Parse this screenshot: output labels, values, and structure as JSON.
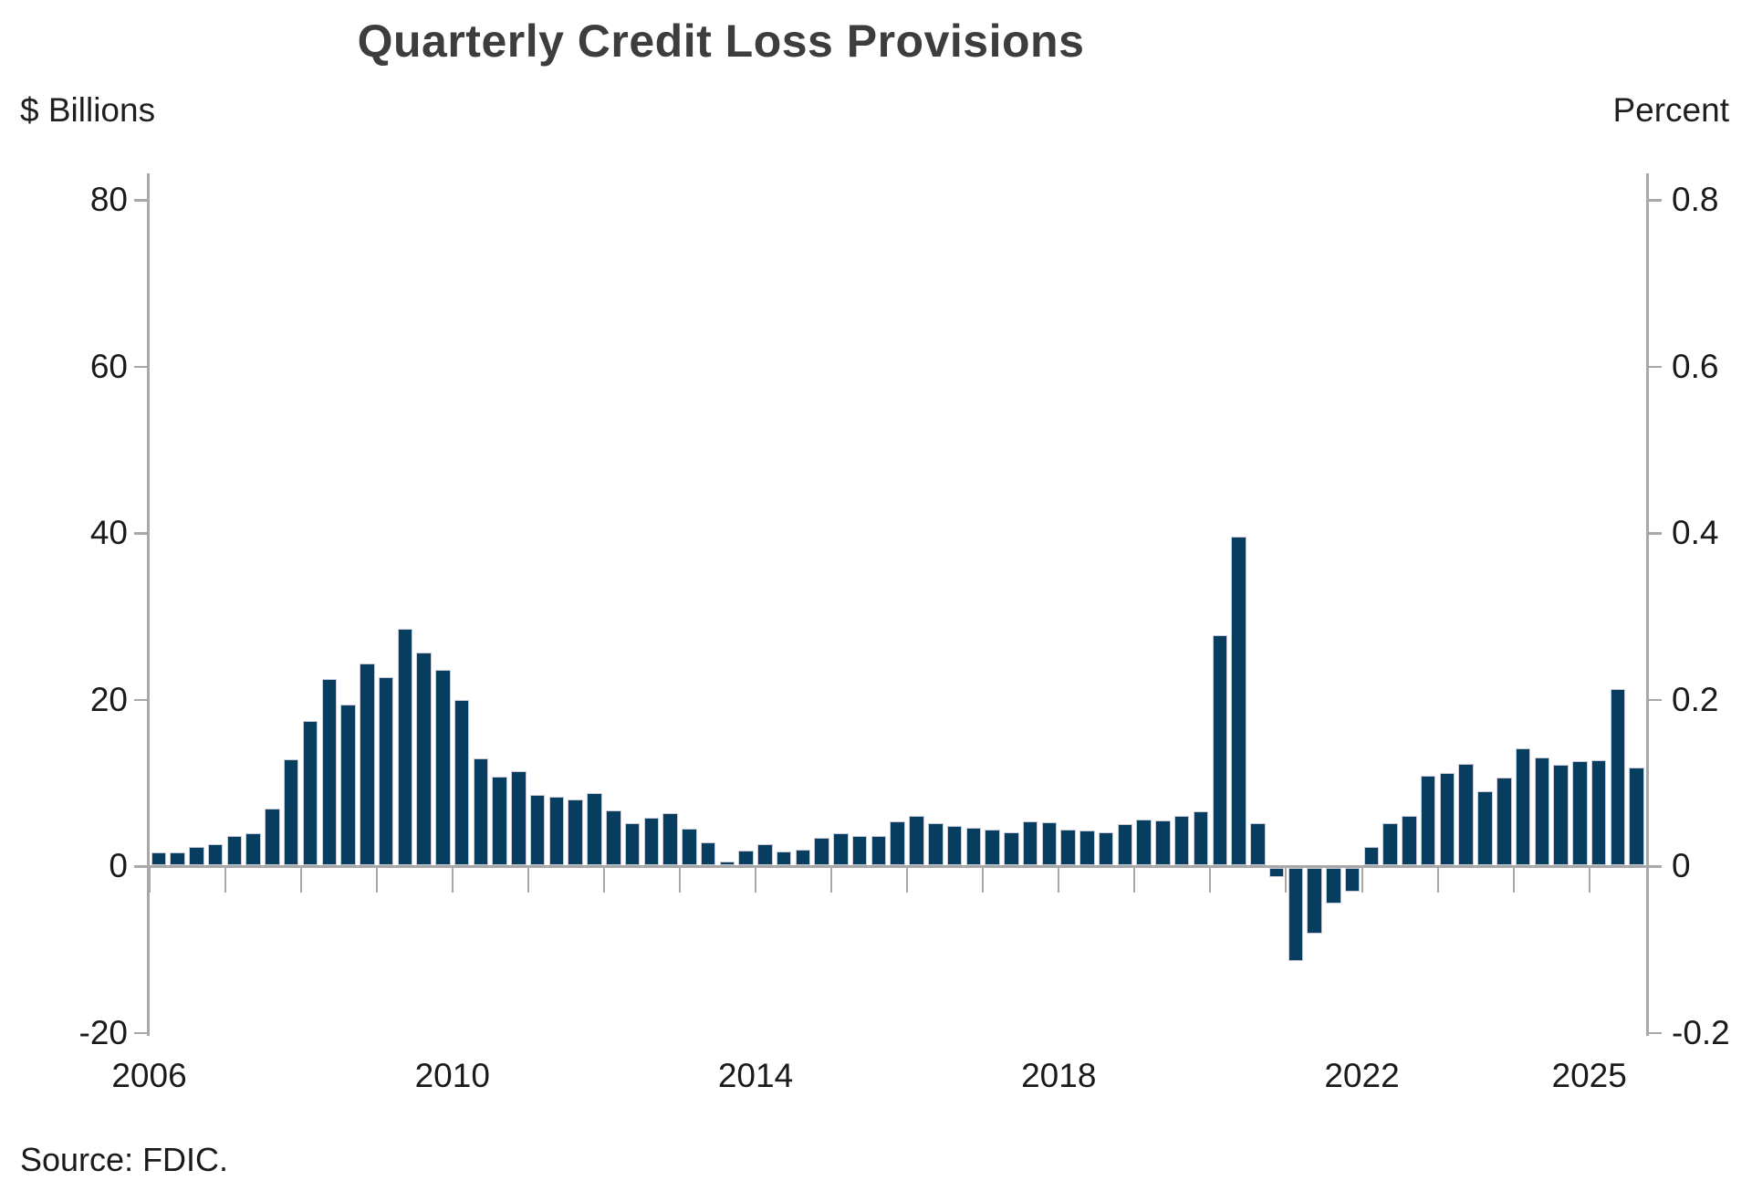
{
  "title": "Quarterly Credit Loss Provisions",
  "left_axis": {
    "title": "$ Billions",
    "tick_labels": [
      "80",
      "60",
      "40",
      "20",
      "0",
      "-20"
    ],
    "tick_values": [
      80,
      60,
      40,
      20,
      0,
      -20
    ]
  },
  "right_axis": {
    "title": "Percent",
    "tick_labels": [
      "0.8",
      "0.6",
      "0.4",
      "0.2",
      "0",
      "-0.2"
    ],
    "tick_values": [
      80,
      60,
      40,
      20,
      0,
      -20
    ]
  },
  "x_axis": {
    "labeled_years": [
      2006,
      2010,
      2014,
      2018,
      2022,
      2025
    ],
    "minor_tick_years": [
      2006,
      2007,
      2008,
      2009,
      2010,
      2011,
      2012,
      2013,
      2014,
      2015,
      2016,
      2017,
      2018,
      2019,
      2020,
      2021,
      2022,
      2023,
      2024,
      2025
    ]
  },
  "source": "Source: FDIC.",
  "colors": {
    "bar_fill": "#073d5e",
    "bar_border": "#c9cbd8",
    "axis_line": "#a8a8a8",
    "text": "#1a1a1a",
    "title_text": "#3d3d3d"
  },
  "chart_data": {
    "type": "bar",
    "title": "Quarterly Credit Loss Provisions",
    "ylabel_left": "$ Billions",
    "ylabel_right": "Percent",
    "ylim": [
      -20,
      80
    ],
    "ylim_right": [
      -0.2,
      0.8
    ],
    "grid": false,
    "legend": false,
    "categories": [
      "2006 Q1",
      "2006 Q2",
      "2006 Q3",
      "2006 Q4",
      "2007 Q1",
      "2007 Q2",
      "2007 Q3",
      "2007 Q4",
      "2008 Q1",
      "2008 Q2",
      "2008 Q3",
      "2008 Q4",
      "2009 Q1",
      "2009 Q2",
      "2009 Q3",
      "2009 Q4",
      "2010 Q1",
      "2010 Q2",
      "2010 Q3",
      "2010 Q4",
      "2011 Q1",
      "2011 Q2",
      "2011 Q3",
      "2011 Q4",
      "2012 Q1",
      "2012 Q2",
      "2012 Q3",
      "2012 Q4",
      "2013 Q1",
      "2013 Q2",
      "2013 Q3",
      "2013 Q4",
      "2014 Q1",
      "2014 Q2",
      "2014 Q3",
      "2014 Q4",
      "2015 Q1",
      "2015 Q2",
      "2015 Q3",
      "2015 Q4",
      "2016 Q1",
      "2016 Q2",
      "2016 Q3",
      "2016 Q4",
      "2017 Q1",
      "2017 Q2",
      "2017 Q3",
      "2017 Q4",
      "2018 Q1",
      "2018 Q2",
      "2018 Q3",
      "2018 Q4",
      "2019 Q1",
      "2019 Q2",
      "2019 Q3",
      "2019 Q4",
      "2020 Q1",
      "2020 Q2",
      "2020 Q3",
      "2020 Q4",
      "2021 Q1",
      "2021 Q2",
      "2021 Q3",
      "2021 Q4",
      "2022 Q1",
      "2022 Q2",
      "2022 Q3",
      "2022 Q4",
      "2023 Q1",
      "2023 Q2",
      "2023 Q3",
      "2023 Q4",
      "2024 Q1",
      "2024 Q2",
      "2024 Q3",
      "2024 Q4",
      "2025 Q1",
      "2025 Q2",
      "2025 Q3"
    ],
    "values": [
      1.6,
      1.6,
      2.2,
      2.6,
      3.5,
      3.9,
      6.8,
      12.8,
      17.4,
      22.4,
      19.3,
      24.2,
      22.6,
      28.4,
      25.6,
      23.5,
      19.9,
      12.9,
      10.7,
      11.3,
      8.5,
      8.3,
      7.9,
      8.7,
      6.6,
      5.1,
      5.7,
      6.3,
      4.4,
      2.8,
      0.5,
      1.8,
      2.5,
      1.7,
      1.9,
      3.3,
      3.9,
      3.5,
      3.5,
      5.3,
      6.0,
      5.1,
      4.7,
      4.5,
      4.3,
      4.0,
      5.3,
      5.2,
      4.3,
      4.2,
      4.0,
      5.0,
      5.5,
      5.4,
      6.0,
      6.5,
      27.6,
      39.5,
      5.1,
      -1.1,
      -11.2,
      -7.9,
      -4.3,
      -2.9,
      2.2,
      5.1,
      6.0,
      10.8,
      11.1,
      12.2,
      8.9,
      10.6,
      14.1,
      13.0,
      12.1,
      12.5,
      12.6,
      21.2,
      11.8
    ]
  }
}
